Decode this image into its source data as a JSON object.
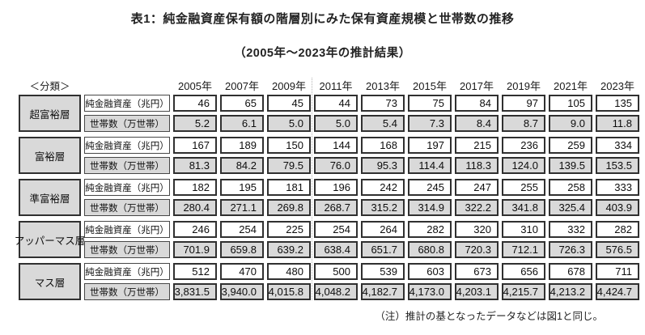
{
  "title": "表1：純金融資産保有額の階層別にみた保有資産規模と世帯数の推移",
  "subtitle": "（2005年～2023年の推計結果）",
  "note": "（注）推計の基となったデータなどは図1と同じ。",
  "table": {
    "classification_header": "＜分類＞",
    "years": [
      "2005年",
      "2007年",
      "2009年",
      "2011年",
      "2013年",
      "2015年",
      "2017年",
      "2019年",
      "2021年",
      "2023年"
    ],
    "row_labels": {
      "assets": "純金融資産（兆円）",
      "households": "世帯数（万世帯）"
    },
    "tiers": [
      {
        "name": "超富裕層",
        "assets": [
          "46",
          "65",
          "45",
          "44",
          "73",
          "75",
          "84",
          "97",
          "105",
          "135"
        ],
        "households": [
          "5.2",
          "6.1",
          "5.0",
          "5.0",
          "5.4",
          "7.3",
          "8.4",
          "8.7",
          "9.0",
          "11.8"
        ]
      },
      {
        "name": "富裕層",
        "assets": [
          "167",
          "189",
          "150",
          "144",
          "168",
          "197",
          "215",
          "236",
          "259",
          "334"
        ],
        "households": [
          "81.3",
          "84.2",
          "79.5",
          "76.0",
          "95.3",
          "114.4",
          "118.3",
          "124.0",
          "139.5",
          "153.5"
        ]
      },
      {
        "name": "準富裕層",
        "assets": [
          "182",
          "195",
          "181",
          "196",
          "242",
          "245",
          "247",
          "255",
          "258",
          "333"
        ],
        "households": [
          "280.4",
          "271.1",
          "269.8",
          "268.7",
          "315.2",
          "314.9",
          "322.2",
          "341.8",
          "325.4",
          "403.9"
        ]
      },
      {
        "name": "アッパーマス層",
        "assets": [
          "246",
          "254",
          "225",
          "254",
          "264",
          "282",
          "320",
          "310",
          "332",
          "282"
        ],
        "households": [
          "701.9",
          "659.8",
          "639.2",
          "638.4",
          "651.7",
          "680.8",
          "720.3",
          "712.1",
          "726.3",
          "576.5"
        ]
      },
      {
        "name": "マス層",
        "assets": [
          "512",
          "470",
          "480",
          "500",
          "539",
          "603",
          "673",
          "656",
          "678",
          "711"
        ],
        "households": [
          "3,831.5",
          "3,940.0",
          "4,015.8",
          "4,048.2",
          "4,182.7",
          "4,173.0",
          "4,203.1",
          "4,215.7",
          "4,213.2",
          "4,424.7"
        ]
      }
    ]
  },
  "colors": {
    "cell_fill_gray": "#d9d9d9",
    "border_dark": "#303030",
    "divider_dotted": "#b3b3b3"
  }
}
